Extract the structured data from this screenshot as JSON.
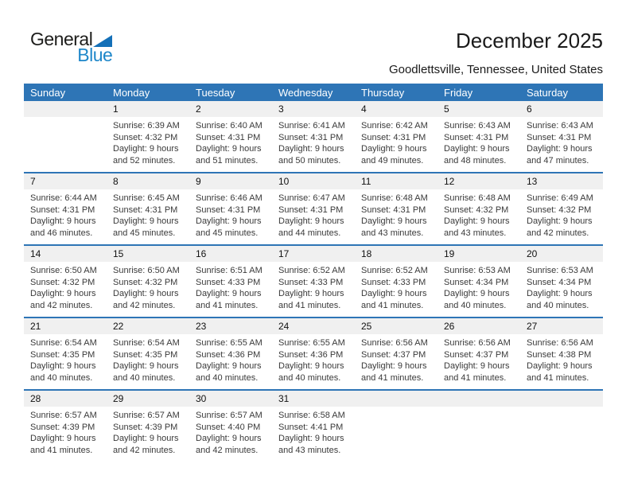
{
  "logo": {
    "part1": "General",
    "part2": "Blue",
    "triangle_icon": "blue-triangle",
    "blue_hex": "#1e87c9"
  },
  "header": {
    "title": "December 2025",
    "subtitle": "Goodlettsville, Tennessee, United States"
  },
  "colors": {
    "weekday_header_bg": "#2e75b6",
    "weekday_header_text": "#ffffff",
    "date_band_bg": "#f0f0f0",
    "week_separator": "#2e75b6"
  },
  "weekdays": [
    "Sunday",
    "Monday",
    "Tuesday",
    "Wednesday",
    "Thursday",
    "Friday",
    "Saturday"
  ],
  "weeks": [
    [
      {
        "day": "",
        "sunrise": "",
        "sunset": "",
        "daylight1": "",
        "daylight2": ""
      },
      {
        "day": "1",
        "sunrise": "Sunrise: 6:39 AM",
        "sunset": "Sunset: 4:32 PM",
        "daylight1": "Daylight: 9 hours",
        "daylight2": "and 52 minutes."
      },
      {
        "day": "2",
        "sunrise": "Sunrise: 6:40 AM",
        "sunset": "Sunset: 4:31 PM",
        "daylight1": "Daylight: 9 hours",
        "daylight2": "and 51 minutes."
      },
      {
        "day": "3",
        "sunrise": "Sunrise: 6:41 AM",
        "sunset": "Sunset: 4:31 PM",
        "daylight1": "Daylight: 9 hours",
        "daylight2": "and 50 minutes."
      },
      {
        "day": "4",
        "sunrise": "Sunrise: 6:42 AM",
        "sunset": "Sunset: 4:31 PM",
        "daylight1": "Daylight: 9 hours",
        "daylight2": "and 49 minutes."
      },
      {
        "day": "5",
        "sunrise": "Sunrise: 6:43 AM",
        "sunset": "Sunset: 4:31 PM",
        "daylight1": "Daylight: 9 hours",
        "daylight2": "and 48 minutes."
      },
      {
        "day": "6",
        "sunrise": "Sunrise: 6:43 AM",
        "sunset": "Sunset: 4:31 PM",
        "daylight1": "Daylight: 9 hours",
        "daylight2": "and 47 minutes."
      }
    ],
    [
      {
        "day": "7",
        "sunrise": "Sunrise: 6:44 AM",
        "sunset": "Sunset: 4:31 PM",
        "daylight1": "Daylight: 9 hours",
        "daylight2": "and 46 minutes."
      },
      {
        "day": "8",
        "sunrise": "Sunrise: 6:45 AM",
        "sunset": "Sunset: 4:31 PM",
        "daylight1": "Daylight: 9 hours",
        "daylight2": "and 45 minutes."
      },
      {
        "day": "9",
        "sunrise": "Sunrise: 6:46 AM",
        "sunset": "Sunset: 4:31 PM",
        "daylight1": "Daylight: 9 hours",
        "daylight2": "and 45 minutes."
      },
      {
        "day": "10",
        "sunrise": "Sunrise: 6:47 AM",
        "sunset": "Sunset: 4:31 PM",
        "daylight1": "Daylight: 9 hours",
        "daylight2": "and 44 minutes."
      },
      {
        "day": "11",
        "sunrise": "Sunrise: 6:48 AM",
        "sunset": "Sunset: 4:31 PM",
        "daylight1": "Daylight: 9 hours",
        "daylight2": "and 43 minutes."
      },
      {
        "day": "12",
        "sunrise": "Sunrise: 6:48 AM",
        "sunset": "Sunset: 4:32 PM",
        "daylight1": "Daylight: 9 hours",
        "daylight2": "and 43 minutes."
      },
      {
        "day": "13",
        "sunrise": "Sunrise: 6:49 AM",
        "sunset": "Sunset: 4:32 PM",
        "daylight1": "Daylight: 9 hours",
        "daylight2": "and 42 minutes."
      }
    ],
    [
      {
        "day": "14",
        "sunrise": "Sunrise: 6:50 AM",
        "sunset": "Sunset: 4:32 PM",
        "daylight1": "Daylight: 9 hours",
        "daylight2": "and 42 minutes."
      },
      {
        "day": "15",
        "sunrise": "Sunrise: 6:50 AM",
        "sunset": "Sunset: 4:32 PM",
        "daylight1": "Daylight: 9 hours",
        "daylight2": "and 42 minutes."
      },
      {
        "day": "16",
        "sunrise": "Sunrise: 6:51 AM",
        "sunset": "Sunset: 4:33 PM",
        "daylight1": "Daylight: 9 hours",
        "daylight2": "and 41 minutes."
      },
      {
        "day": "17",
        "sunrise": "Sunrise: 6:52 AM",
        "sunset": "Sunset: 4:33 PM",
        "daylight1": "Daylight: 9 hours",
        "daylight2": "and 41 minutes."
      },
      {
        "day": "18",
        "sunrise": "Sunrise: 6:52 AM",
        "sunset": "Sunset: 4:33 PM",
        "daylight1": "Daylight: 9 hours",
        "daylight2": "and 41 minutes."
      },
      {
        "day": "19",
        "sunrise": "Sunrise: 6:53 AM",
        "sunset": "Sunset: 4:34 PM",
        "daylight1": "Daylight: 9 hours",
        "daylight2": "and 40 minutes."
      },
      {
        "day": "20",
        "sunrise": "Sunrise: 6:53 AM",
        "sunset": "Sunset: 4:34 PM",
        "daylight1": "Daylight: 9 hours",
        "daylight2": "and 40 minutes."
      }
    ],
    [
      {
        "day": "21",
        "sunrise": "Sunrise: 6:54 AM",
        "sunset": "Sunset: 4:35 PM",
        "daylight1": "Daylight: 9 hours",
        "daylight2": "and 40 minutes."
      },
      {
        "day": "22",
        "sunrise": "Sunrise: 6:54 AM",
        "sunset": "Sunset: 4:35 PM",
        "daylight1": "Daylight: 9 hours",
        "daylight2": "and 40 minutes."
      },
      {
        "day": "23",
        "sunrise": "Sunrise: 6:55 AM",
        "sunset": "Sunset: 4:36 PM",
        "daylight1": "Daylight: 9 hours",
        "daylight2": "and 40 minutes."
      },
      {
        "day": "24",
        "sunrise": "Sunrise: 6:55 AM",
        "sunset": "Sunset: 4:36 PM",
        "daylight1": "Daylight: 9 hours",
        "daylight2": "and 40 minutes."
      },
      {
        "day": "25",
        "sunrise": "Sunrise: 6:56 AM",
        "sunset": "Sunset: 4:37 PM",
        "daylight1": "Daylight: 9 hours",
        "daylight2": "and 41 minutes."
      },
      {
        "day": "26",
        "sunrise": "Sunrise: 6:56 AM",
        "sunset": "Sunset: 4:37 PM",
        "daylight1": "Daylight: 9 hours",
        "daylight2": "and 41 minutes."
      },
      {
        "day": "27",
        "sunrise": "Sunrise: 6:56 AM",
        "sunset": "Sunset: 4:38 PM",
        "daylight1": "Daylight: 9 hours",
        "daylight2": "and 41 minutes."
      }
    ],
    [
      {
        "day": "28",
        "sunrise": "Sunrise: 6:57 AM",
        "sunset": "Sunset: 4:39 PM",
        "daylight1": "Daylight: 9 hours",
        "daylight2": "and 41 minutes."
      },
      {
        "day": "29",
        "sunrise": "Sunrise: 6:57 AM",
        "sunset": "Sunset: 4:39 PM",
        "daylight1": "Daylight: 9 hours",
        "daylight2": "and 42 minutes."
      },
      {
        "day": "30",
        "sunrise": "Sunrise: 6:57 AM",
        "sunset": "Sunset: 4:40 PM",
        "daylight1": "Daylight: 9 hours",
        "daylight2": "and 42 minutes."
      },
      {
        "day": "31",
        "sunrise": "Sunrise: 6:58 AM",
        "sunset": "Sunset: 4:41 PM",
        "daylight1": "Daylight: 9 hours",
        "daylight2": "and 43 minutes."
      },
      {
        "day": "",
        "sunrise": "",
        "sunset": "",
        "daylight1": "",
        "daylight2": ""
      },
      {
        "day": "",
        "sunrise": "",
        "sunset": "",
        "daylight1": "",
        "daylight2": ""
      },
      {
        "day": "",
        "sunrise": "",
        "sunset": "",
        "daylight1": "",
        "daylight2": ""
      }
    ]
  ]
}
